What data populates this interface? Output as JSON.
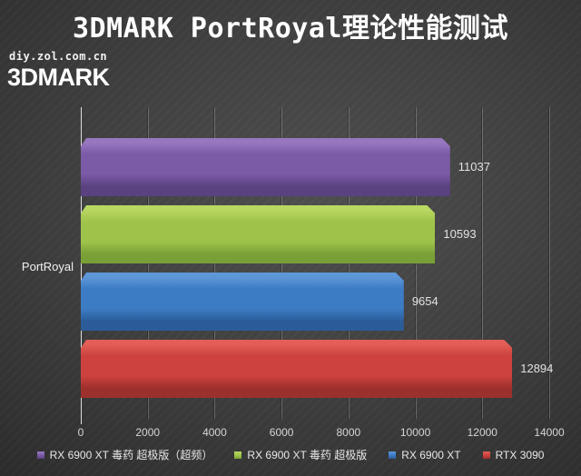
{
  "header": {
    "title": "3DMARK PortRoyal理论性能测试",
    "watermark": "diy.zol.com.cn",
    "corner_label": "3DMARK"
  },
  "chart_data": {
    "type": "bar",
    "orientation": "horizontal",
    "title": "3DMARK PortRoyal理论性能测试",
    "category": "PortRoyal",
    "xlim": [
      0,
      14000
    ],
    "x_ticks": [
      "0",
      "2000",
      "4000",
      "6000",
      "8000",
      "10000",
      "12000",
      "14000"
    ],
    "grid": "vertical",
    "legend_position": "bottom",
    "series": [
      {
        "name": "RX 6900 XT 毒药 超极版（超频）",
        "value": 11037,
        "value_label": "11037",
        "color": "#7b5aa6",
        "color_light": "#9777c0",
        "color_dark": "#5a4180"
      },
      {
        "name": "RX 6900 XT 毒药 超极版",
        "value": 10593,
        "value_label": "10593",
        "color": "#9fc34a",
        "color_light": "#b9d763",
        "color_dark": "#79a036"
      },
      {
        "name": "RX 6900 XT",
        "value": 9654,
        "value_label": "9654",
        "color": "#3c7cc4",
        "color_light": "#5e97d8",
        "color_dark": "#2b5c99"
      },
      {
        "name": "RTX 3090",
        "value": 12894,
        "value_label": "12894",
        "color": "#cd423e",
        "color_light": "#e25e57",
        "color_dark": "#9c302d"
      }
    ]
  }
}
